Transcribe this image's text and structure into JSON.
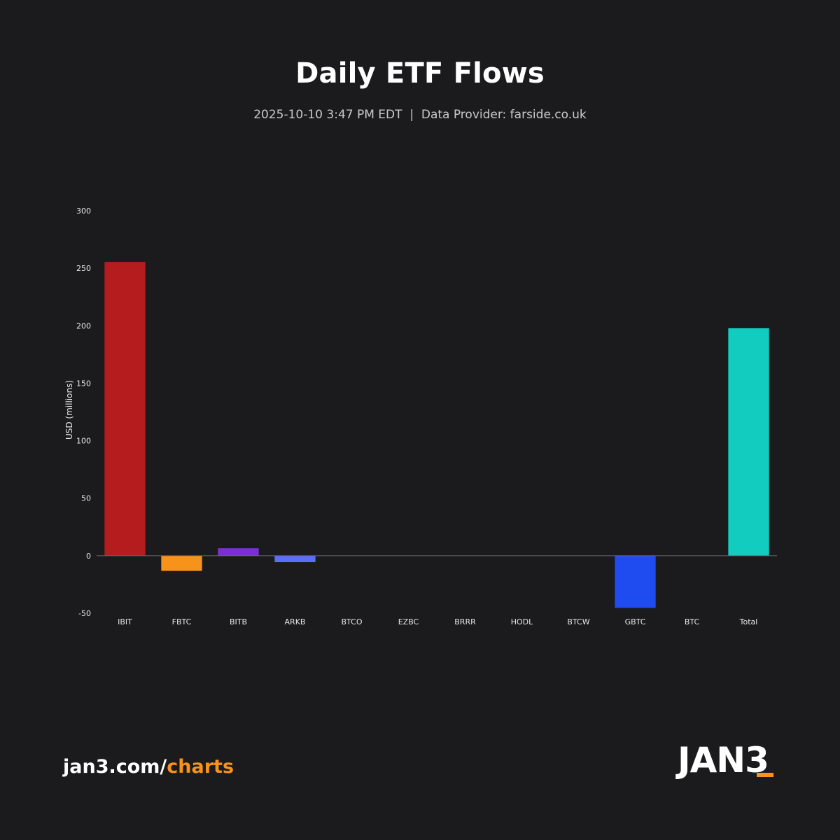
{
  "chart_data": {
    "type": "bar",
    "title": "Daily ETF Flows",
    "subtitle": "2025-10-10 3:47 PM EDT  |  Data Provider: farside.co.uk",
    "xlabel": "",
    "ylabel": "USD (millions)",
    "ylim": [
      -50,
      300
    ],
    "yticks": [
      300,
      250,
      200,
      150,
      100,
      50,
      0,
      -50
    ],
    "grid": false,
    "categories": [
      "IBIT",
      "FBTC",
      "BITB",
      "ARKB",
      "BTCO",
      "EZBC",
      "BRRR",
      "HODL",
      "BTCW",
      "GBTC",
      "BTC",
      "Total"
    ],
    "values": [
      255.5,
      -13.2,
      6.5,
      -5.6,
      0,
      0,
      0,
      0,
      0,
      -45.4,
      0,
      197.8
    ],
    "colors": [
      "#b51c1e",
      "#f7931a",
      "#7b2fd3",
      "#5b6ef5",
      "#888888",
      "#888888",
      "#888888",
      "#888888",
      "#888888",
      "#1f4cf0",
      "#888888",
      "#12ccc0"
    ]
  },
  "footer": {
    "url_prefix": "jan3.com/",
    "url_accent": "charts",
    "logo_text": "JAN3"
  },
  "theme": {
    "background": "#1b1b1d",
    "accent": "#f7931a"
  }
}
